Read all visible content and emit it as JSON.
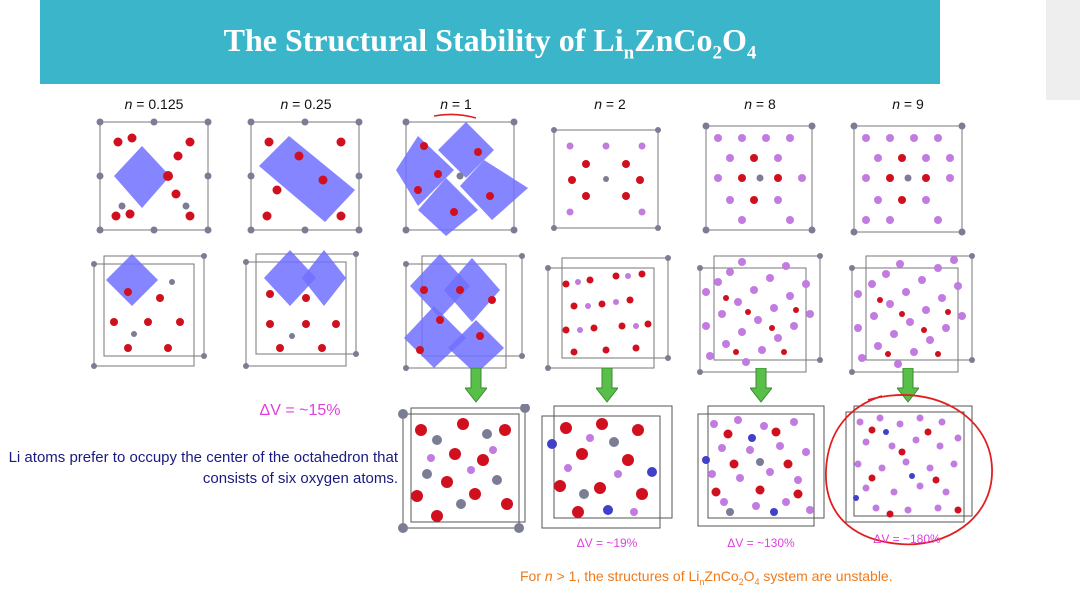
{
  "title": {
    "prefix": "The Structural Stability of Li",
    "n": "n",
    "mid1": "ZnCo",
    "two": "2",
    "mid2": "O",
    "four": "4"
  },
  "columns": [
    {
      "n_var": "n",
      "n_eq": " = ",
      "n_val": "0.125"
    },
    {
      "n_var": "n",
      "n_eq": " = ",
      "n_val": "0.25"
    },
    {
      "n_var": "n",
      "n_eq": " = ",
      "n_val": "1"
    },
    {
      "n_var": "n",
      "n_eq": " = ",
      "n_val": "2"
    },
    {
      "n_var": "n",
      "n_eq": " = ",
      "n_val": "8"
    },
    {
      "n_var": "n",
      "n_eq": " = ",
      "n_val": "9"
    }
  ],
  "volume_changes": {
    "n025": "ΔV = ~15%",
    "n2": "ΔV = ~19%",
    "n8": "ΔV = ~130%",
    "n9": "ΔV = ~180%"
  },
  "note": "Li atoms prefer to occupy the center of the octahedron that consists of six oxygen atoms.",
  "footnote": {
    "p1": "For ",
    "n": "n",
    "p2": " > 1, the structures of Li",
    "sub_n": "n",
    "p3": "ZnCo",
    "sub2": "2",
    "p4": "O",
    "sub4": "4",
    "p5": " system are unstable."
  },
  "colors": {
    "title_bar": "#3ab5c9",
    "oxygen": "#d0101e",
    "zinc": "#7a7d94",
    "lithium": "#c27be0",
    "octahedron": "#7070ff",
    "arrow": "#58c048",
    "annotation": "#e02020"
  }
}
